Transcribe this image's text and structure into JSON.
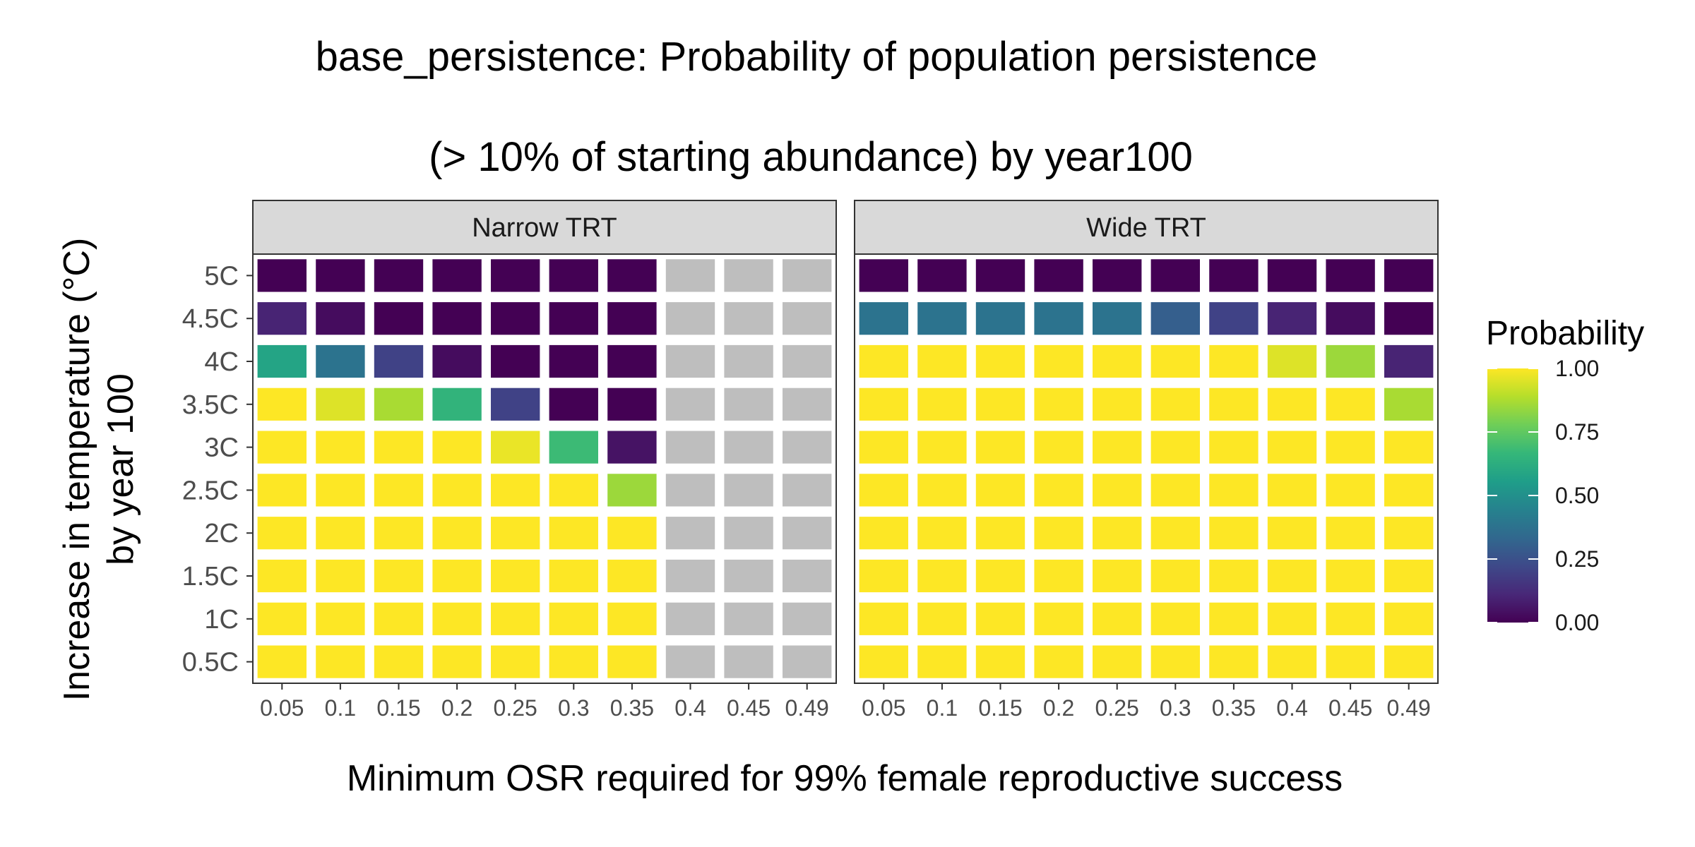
{
  "chart_data": {
    "type": "heatmap",
    "title_lines": [
      "base_persistence: Probability of population persistence",
      "(> 10% of starting abundance) by year100"
    ],
    "xlabel": "Minimum OSR required for 99% female reproductive success",
    "ylabel_lines": [
      "Increase in temperature (°C)",
      "by year 100"
    ],
    "x_categories": [
      "0.05",
      "0.1",
      "0.15",
      "0.2",
      "0.25",
      "0.3",
      "0.35",
      "0.4",
      "0.45",
      "0.49"
    ],
    "y_categories": [
      "0.5C",
      "1C",
      "1.5C",
      "2C",
      "2.5C",
      "3C",
      "3.5C",
      "4C",
      "4.5C",
      "5C"
    ],
    "na_color": "#bebebe",
    "legend": {
      "title": "Probability",
      "ticks": [
        1.0,
        0.75,
        0.5,
        0.25,
        0.0
      ],
      "tick_labels": [
        "1.00",
        "0.75",
        "0.50",
        "0.25",
        "0.00"
      ],
      "position": "right"
    },
    "color_scale": {
      "name": "viridis",
      "range": [
        0,
        1
      ],
      "stops": [
        "#440154",
        "#482878",
        "#3e4989",
        "#31688e",
        "#26828e",
        "#1f9e89",
        "#35b779",
        "#6ece58",
        "#b5de2b",
        "#fde725"
      ]
    },
    "panels": [
      {
        "name": "Narrow TRT",
        "values": [
          [
            1,
            1,
            1,
            1,
            1,
            1,
            1,
            null,
            null,
            null
          ],
          [
            1,
            1,
            1,
            1,
            1,
            1,
            1,
            null,
            null,
            null
          ],
          [
            1,
            1,
            1,
            1,
            1,
            1,
            1,
            null,
            null,
            null
          ],
          [
            1,
            1,
            1,
            1,
            1,
            1,
            1,
            null,
            null,
            null
          ],
          [
            1,
            1,
            1,
            1,
            1,
            1,
            0.85,
            null,
            null,
            null
          ],
          [
            1,
            1,
            1,
            1,
            0.97,
            0.68,
            0.05,
            null,
            null,
            null
          ],
          [
            1,
            0.95,
            0.87,
            0.65,
            0.2,
            0,
            0,
            null,
            null,
            null
          ],
          [
            0.58,
            0.38,
            0.2,
            0.03,
            0,
            0,
            0,
            null,
            null,
            null
          ],
          [
            0.1,
            0.03,
            0,
            0,
            0,
            0,
            0,
            null,
            null,
            null
          ],
          [
            0,
            0,
            0,
            0,
            0,
            0,
            0,
            null,
            null,
            null
          ]
        ]
      },
      {
        "name": "Wide TRT",
        "values": [
          [
            1,
            1,
            1,
            1,
            1,
            1,
            1,
            1,
            1,
            1
          ],
          [
            1,
            1,
            1,
            1,
            1,
            1,
            1,
            1,
            1,
            1
          ],
          [
            1,
            1,
            1,
            1,
            1,
            1,
            1,
            1,
            1,
            1
          ],
          [
            1,
            1,
            1,
            1,
            1,
            1,
            1,
            1,
            1,
            1
          ],
          [
            1,
            1,
            1,
            1,
            1,
            1,
            1,
            1,
            1,
            1
          ],
          [
            1,
            1,
            1,
            1,
            1,
            1,
            1,
            1,
            1,
            1
          ],
          [
            1,
            1,
            1,
            1,
            1,
            1,
            1,
            1,
            1,
            0.87
          ],
          [
            1,
            1,
            1,
            1,
            1,
            1,
            1,
            0.95,
            0.85,
            0.1
          ],
          [
            0.38,
            0.38,
            0.38,
            0.38,
            0.38,
            0.3,
            0.2,
            0.1,
            0.03,
            0
          ],
          [
            0,
            0,
            0,
            0,
            0,
            0,
            0,
            0,
            0,
            0
          ]
        ]
      }
    ]
  }
}
